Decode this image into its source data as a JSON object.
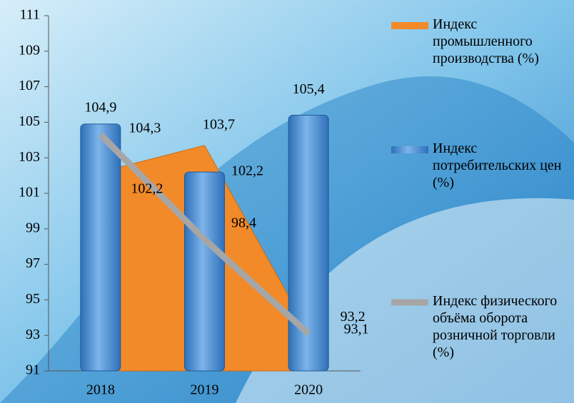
{
  "chart_data": {
    "type": "combo",
    "categories": [
      "2018",
      "2019",
      "2020"
    ],
    "ylim": [
      91,
      111
    ],
    "yticks": [
      91,
      93,
      95,
      97,
      99,
      101,
      103,
      105,
      107,
      109,
      111
    ],
    "legend": "right",
    "series": [
      {
        "name": "Индекс промышленного производства (%)",
        "type": "area",
        "color": "#f28a2a",
        "values": [
          102.2,
          103.7,
          93.2
        ],
        "value_labels": [
          "102,2",
          "103,7",
          "93,2"
        ]
      },
      {
        "name": "Индекс потребительских цен (%)",
        "type": "bar",
        "color": "#4a8fd8",
        "values": [
          104.9,
          102.2,
          105.4
        ],
        "value_labels": [
          "104,9",
          "102,2",
          "105,4"
        ]
      },
      {
        "name": "Индекс физического объёма оборота розничной торговли (%)",
        "type": "line",
        "color": "#a6a6a6",
        "values": [
          104.3,
          98.4,
          93.1
        ],
        "value_labels": [
          "104,3",
          "98,4",
          "93,1"
        ]
      }
    ]
  }
}
